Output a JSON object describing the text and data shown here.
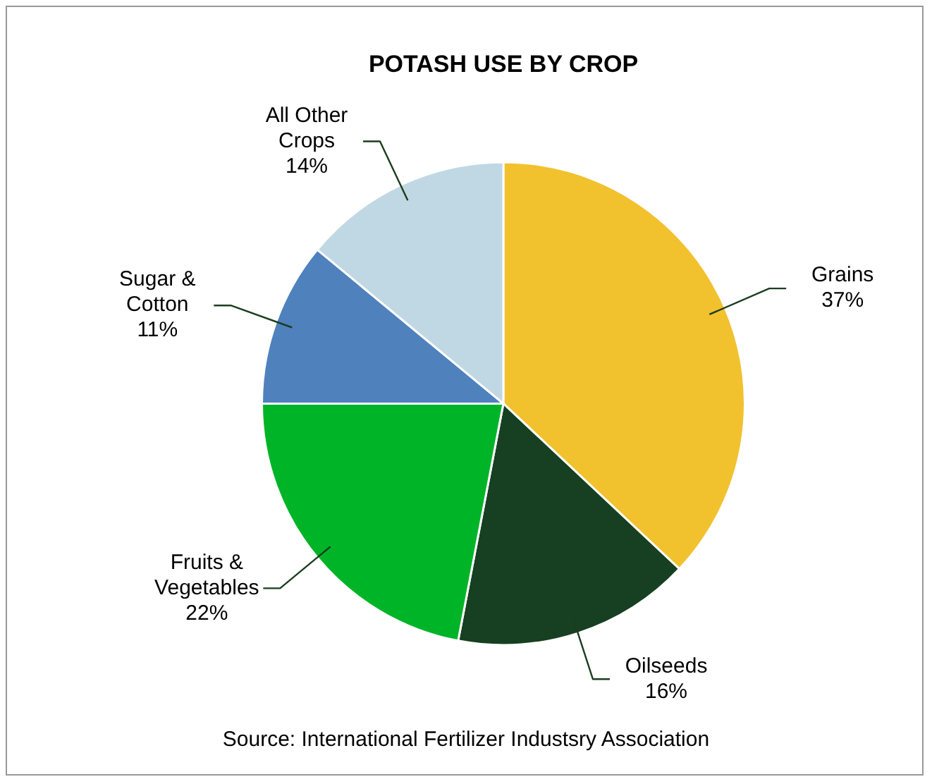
{
  "chart_data": {
    "type": "pie",
    "title": "POTASH USE BY CROP",
    "categories": [
      "Grains",
      "Oilseeds",
      "Fruits & Vegetables",
      "Sugar & Cotton",
      "All Other Crops"
    ],
    "values": [
      37,
      16,
      22,
      11,
      14
    ],
    "value_labels": [
      "37%",
      "16%",
      "22%",
      "11%",
      "14%"
    ],
    "colors": [
      "#f2c12e",
      "#173f22",
      "#00b427",
      "#4f81bd",
      "#c0d8e4"
    ],
    "legend": false,
    "annotations": [
      "Source: International Fertilizer Industsry Association"
    ]
  }
}
